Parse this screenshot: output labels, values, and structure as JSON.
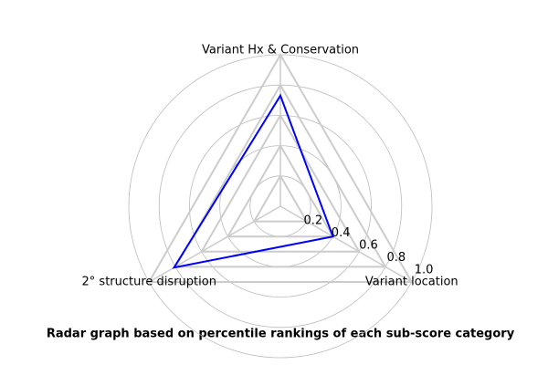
{
  "chart_data": {
    "type": "radar",
    "title": "Radar graph based on percentile rankings of each sub-score category",
    "categories": [
      "Variant Hx & Conservation",
      "2° structure disruption",
      "Variant location"
    ],
    "values": [
      0.73,
      0.81,
      0.4
    ],
    "color": "#0000ff",
    "rlim": [
      0,
      1
    ],
    "rticks": [
      0.2,
      0.4,
      0.6,
      0.8,
      {
        "value": 1,
        "label": "1.0"
      }
    ],
    "grid": true
  }
}
